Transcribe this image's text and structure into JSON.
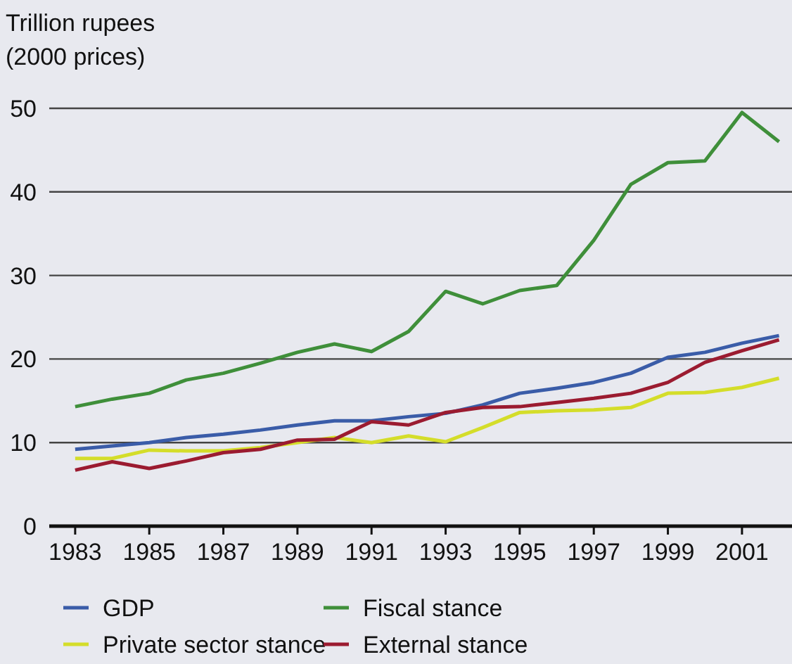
{
  "chart_data": {
    "type": "line",
    "ylabel": "Trillion rupees\n(2000 prices)",
    "x": [
      1983,
      1984,
      1985,
      1986,
      1987,
      1988,
      1989,
      1990,
      1991,
      1992,
      1993,
      1994,
      1995,
      1996,
      1997,
      1998,
      1999,
      2000,
      2001,
      2002
    ],
    "series": [
      {
        "name": "GDP",
        "color": "#3a5ca8",
        "values": [
          9.2,
          9.6,
          10.0,
          10.6,
          11.0,
          11.5,
          12.1,
          12.6,
          12.6,
          13.1,
          13.5,
          14.5,
          15.9,
          16.5,
          17.2,
          18.3,
          20.2,
          20.8,
          21.9,
          22.8
        ]
      },
      {
        "name": "Fiscal stance",
        "color": "#3f8f3a",
        "values": [
          14.3,
          15.2,
          15.9,
          17.5,
          18.3,
          19.5,
          20.8,
          21.8,
          20.9,
          23.3,
          28.1,
          26.6,
          28.2,
          28.8,
          34.2,
          40.9,
          43.5,
          43.7,
          49.5,
          46.0
        ]
      },
      {
        "name": "Private sector stance",
        "color": "#d4dd2a",
        "values": [
          8.1,
          8.1,
          9.1,
          9.0,
          9.0,
          9.4,
          10.0,
          10.6,
          10.0,
          10.8,
          10.1,
          11.8,
          13.6,
          13.8,
          13.9,
          14.2,
          15.9,
          16.0,
          16.6,
          17.7
        ]
      },
      {
        "name": "External stance",
        "color": "#9b1b30",
        "values": [
          6.7,
          7.7,
          6.9,
          7.8,
          8.8,
          9.2,
          10.3,
          10.4,
          12.5,
          12.1,
          13.6,
          14.2,
          14.3,
          14.8,
          15.3,
          15.9,
          17.2,
          19.6,
          21.0,
          22.3
        ]
      }
    ],
    "xlim": [
      1982.3,
      2002.35
    ],
    "xticks": [
      1983,
      1985,
      1987,
      1989,
      1991,
      1993,
      1995,
      1997,
      1999,
      2001
    ],
    "ylim": [
      0,
      50
    ],
    "yticks": [
      0,
      10,
      20,
      30,
      40,
      50
    ],
    "grid": "y",
    "legend": "bottom",
    "marker": "none",
    "line_style": "solid"
  }
}
